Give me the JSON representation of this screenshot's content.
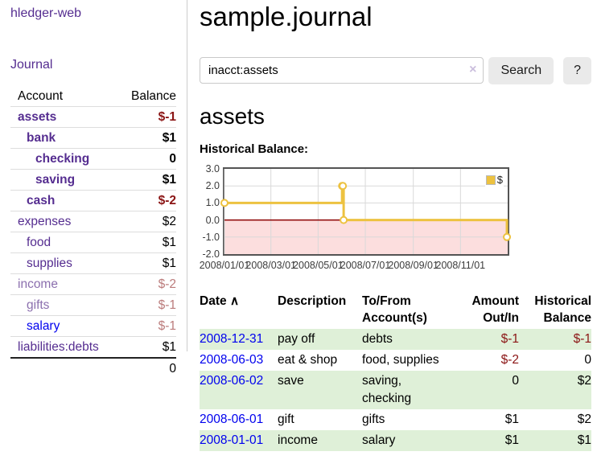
{
  "sidebar": {
    "app_title": "hledger-web",
    "nav": {
      "journal": "Journal"
    },
    "table": {
      "account_header": "Account",
      "balance_header": "Balance",
      "accounts": [
        {
          "name": "assets",
          "balance": "$-1"
        },
        {
          "name": "bank",
          "balance": "$1"
        },
        {
          "name": "checking",
          "balance": "0"
        },
        {
          "name": "saving",
          "balance": "$1"
        },
        {
          "name": "cash",
          "balance": "$-2"
        },
        {
          "name": "expenses",
          "balance": "$2"
        },
        {
          "name": "food",
          "balance": "$1"
        },
        {
          "name": "supplies",
          "balance": "$1"
        },
        {
          "name": "income",
          "balance": "$-2"
        },
        {
          "name": "gifts",
          "balance": "$-1"
        },
        {
          "name": "salary",
          "balance": "$-1"
        },
        {
          "name": "liabilities:debts",
          "balance": "$1"
        }
      ],
      "total": "0"
    }
  },
  "header": {
    "title": "sample.journal"
  },
  "search": {
    "value": "inacct:assets",
    "clear_icon": "×",
    "search_button": "Search",
    "help_button": "?"
  },
  "account_page": {
    "heading": "assets",
    "chart_title": "Historical Balance:"
  },
  "chart_data": {
    "type": "line",
    "line_style": "steps",
    "title": "Historical Balance:",
    "series": [
      {
        "name": "$",
        "color": "#edc240",
        "points": [
          [
            "2008-01-01",
            1
          ],
          [
            "2008-06-01",
            2
          ],
          [
            "2008-06-02",
            2
          ],
          [
            "2008-06-03",
            0
          ],
          [
            "2008-12-31",
            -1
          ]
        ]
      }
    ],
    "xlim": [
      "2008-01-01",
      "2009-01-01"
    ],
    "ylim": [
      -2,
      3
    ],
    "x_ticks": [
      {
        "date": "2008-01-01",
        "label": "2008/01/01"
      },
      {
        "date": "2008-03-01",
        "label": "2008/03/01"
      },
      {
        "date": "2008-05-01",
        "label": "2008/05/01"
      },
      {
        "date": "2008-07-01",
        "label": "2008/07/01"
      },
      {
        "date": "2008-09-01",
        "label": "2008/09/01"
      },
      {
        "date": "2008-11-01",
        "label": "2008/11/01"
      }
    ],
    "y_ticks": [
      3,
      2,
      1,
      0,
      -1,
      -2
    ],
    "y_tick_labels": [
      "3.0",
      "2.0",
      "1.0",
      "0.0",
      "-1.0",
      "-2.0"
    ],
    "legend": {
      "label": "$",
      "position": "top-right"
    },
    "grid": true,
    "negative_region_fill": "#fcdede",
    "zero_line_color": "#8b0000",
    "gridline_color": "#d9d9d9",
    "border_color": "#545454"
  },
  "register": {
    "columns": {
      "date": "Date",
      "sort_icon": "∧",
      "description": "Description",
      "accounts": "To/From Account(s)",
      "amount": "Amount Out/In",
      "balance": "Historical Balance"
    },
    "rows": [
      {
        "date": "2008-12-31",
        "description": "pay off",
        "accounts": "debts",
        "amount": "$-1",
        "balance": "$-1"
      },
      {
        "date": "2008-06-03",
        "description": "eat & shop",
        "accounts": "food, supplies",
        "amount": "$-2",
        "balance": "0"
      },
      {
        "date": "2008-06-02",
        "description": "save",
        "accounts": "saving,\nchecking",
        "amount": "0",
        "balance": "$2"
      },
      {
        "date": "2008-06-01",
        "description": "gift",
        "accounts": "gifts",
        "amount": "$1",
        "balance": "$2"
      },
      {
        "date": "2008-01-01",
        "description": "income",
        "accounts": "salary",
        "amount": "$1",
        "balance": "$1"
      }
    ]
  }
}
